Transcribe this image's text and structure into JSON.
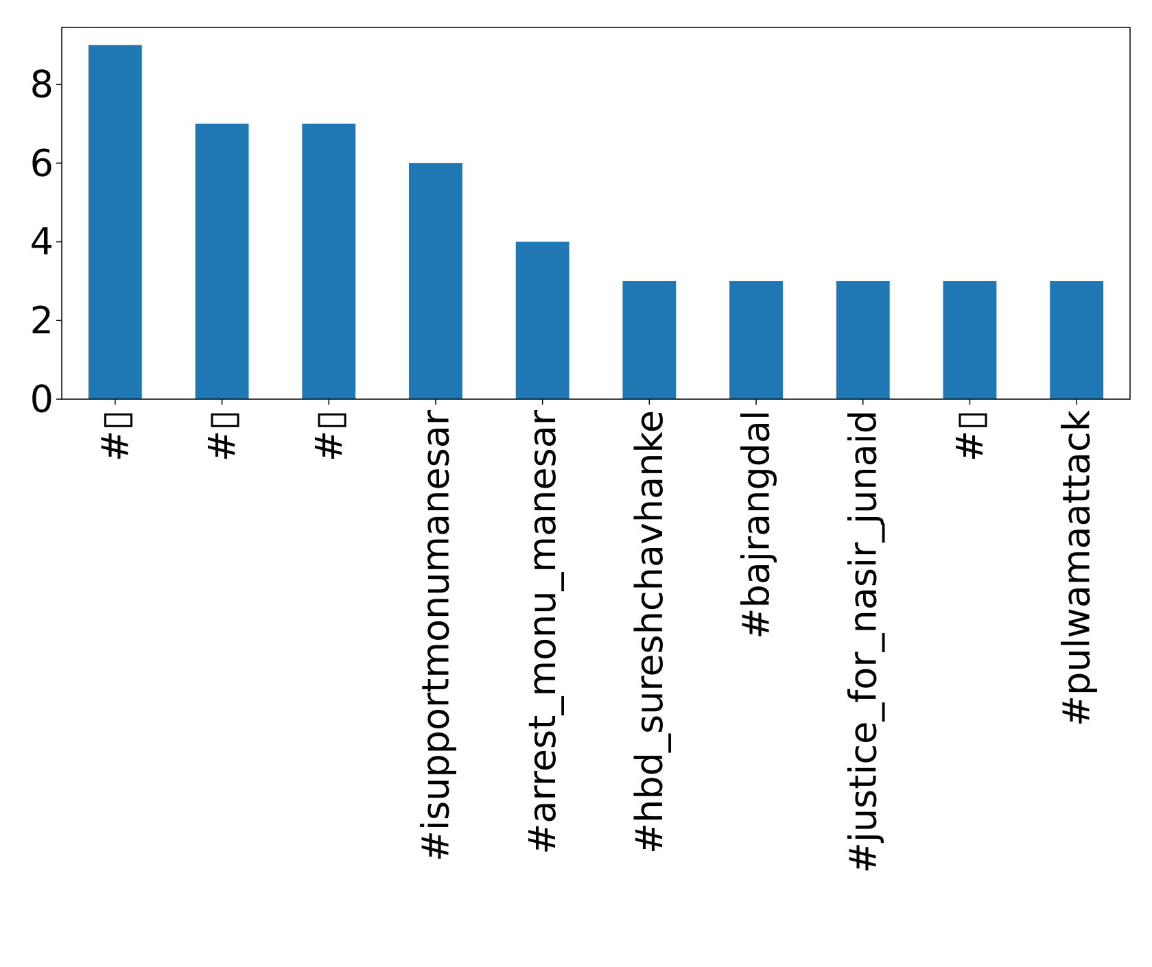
{
  "chart_data": {
    "type": "bar",
    "title": "",
    "xlabel": "",
    "ylabel": "",
    "categories": [
      "#▯",
      "#▯",
      "#▯",
      "#isupportmonumanesar",
      "#arrest_monu_manesar",
      "#hbd_sureshchavhanke",
      "#bajrangdal",
      "#justice_for_nasir_junaid",
      "#▯",
      "#pulwamaattack"
    ],
    "values": [
      9,
      7,
      7,
      6,
      4,
      3,
      3,
      3,
      3,
      3
    ],
    "ylim": [
      0,
      9.45
    ],
    "yticks": [
      0,
      2,
      4,
      6,
      8
    ],
    "ytick_labels": [
      "0",
      "2",
      "4",
      "6",
      "8"
    ],
    "bar_color": "#1f77b4",
    "grid": false,
    "legend": "none"
  }
}
